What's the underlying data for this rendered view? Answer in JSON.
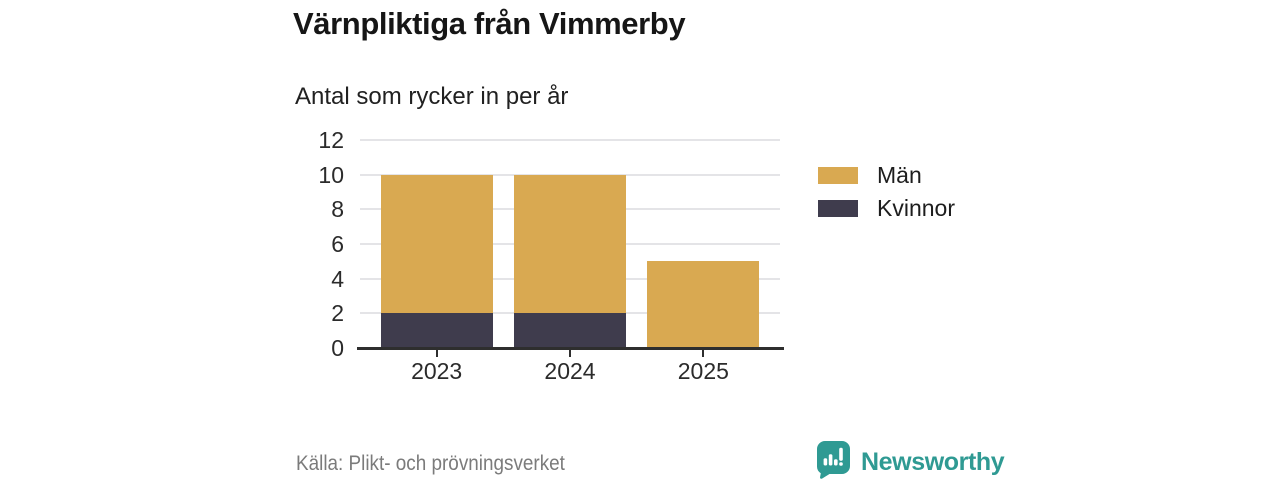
{
  "title": "Värnpliktiga från Vimmerby",
  "subtitle": "Antal som rycker in per år",
  "source": "Källa: Plikt- och prövningsverket",
  "branding": {
    "name": "Newsworthy",
    "color": "#2f9a93",
    "icon": "bar-chart-speech-bubble-icon"
  },
  "legend": [
    {
      "label": "Män",
      "color": "#d9a951"
    },
    {
      "label": "Kvinnor",
      "color": "#3f3c4d"
    }
  ],
  "colors": {
    "men": "#d9a951",
    "women": "#3f3c4d",
    "axis": "#2e2e2e",
    "gridline": "#e4e4e7",
    "text": "#2b2b2b",
    "muted": "#7b7b7b"
  },
  "chart_data": {
    "type": "bar",
    "stacked": true,
    "title": "Värnpliktiga från Vimmerby",
    "subtitle": "Antal som rycker in per år",
    "categories": [
      "2023",
      "2024",
      "2025"
    ],
    "series": [
      {
        "name": "Kvinnor",
        "color": "#3f3c4d",
        "values": [
          2,
          2,
          0
        ]
      },
      {
        "name": "Män",
        "color": "#d9a951",
        "values": [
          8,
          8,
          5
        ]
      }
    ],
    "totals": [
      10,
      10,
      5
    ],
    "xlabel": "",
    "ylabel": "",
    "ylim": [
      0,
      12
    ],
    "y_ticks": [
      0,
      2,
      4,
      6,
      8,
      10,
      12
    ],
    "grid": true,
    "legend_position": "right",
    "legend_order": [
      "Män",
      "Kvinnor"
    ]
  }
}
